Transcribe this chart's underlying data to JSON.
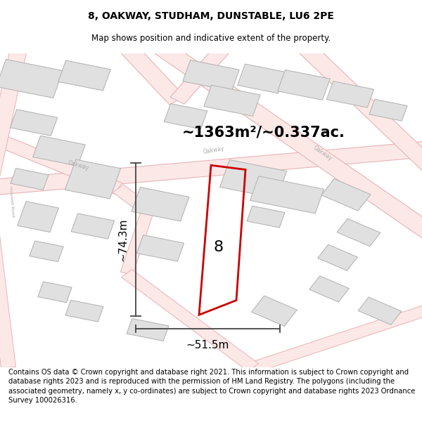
{
  "title": "8, OAKWAY, STUDHAM, DUNSTABLE, LU6 2PE",
  "subtitle": "Map shows position and indicative extent of the property.",
  "area_label": "~1363m²/~0.337ac.",
  "plot_number": "8",
  "width_label": "~51.5m",
  "height_label": "~74.3m",
  "footer": "Contains OS data © Crown copyright and database right 2021. This information is subject to Crown copyright and database rights 2023 and is reproduced with the permission of HM Land Registry. The polygons (including the associated geometry, namely x, y co-ordinates) are subject to Crown copyright and database rights 2023 Ordnance Survey 100026316.",
  "map_bg": "#ffffff",
  "road_edge_color": "#e8b4b4",
  "road_fill_color": "#fde8e8",
  "building_edge_color": "#b0b0b0",
  "building_fill_color": "#e0e0e0",
  "plot_color": "#cc0000",
  "dim_color": "#444444",
  "street_label_color": "#aaaaaa",
  "title_fontsize": 10,
  "subtitle_fontsize": 8.5,
  "area_fontsize": 15,
  "plot_num_fontsize": 16,
  "dim_fontsize": 11,
  "footer_fontsize": 7.2
}
